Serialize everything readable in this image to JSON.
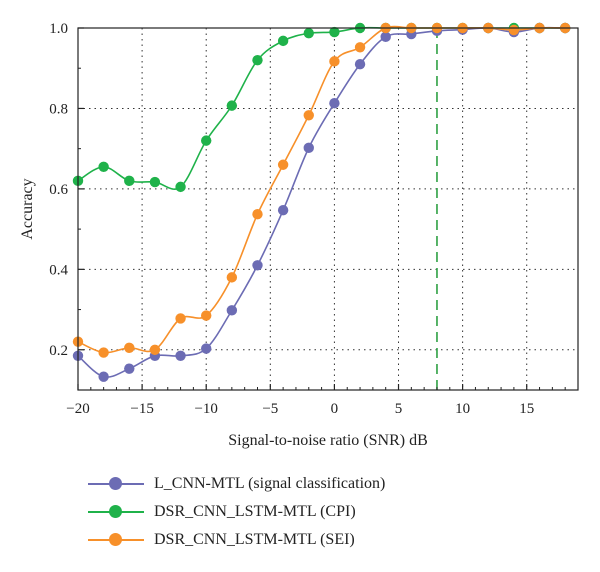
{
  "chart_data": {
    "type": "line",
    "xlabel": "Signal-to-noise ratio (SNR) dB",
    "ylabel": "Accuracy",
    "xlim": [
      -20,
      19
    ],
    "ylim": [
      0.1,
      1.0
    ],
    "xticks": [
      -20,
      -15,
      -10,
      -5,
      0,
      5,
      10,
      15
    ],
    "xticklabels": [
      "−20",
      "−15",
      "−10",
      "−5",
      "0",
      "5",
      "10",
      "15"
    ],
    "yticks": [
      0.2,
      0.4,
      0.6,
      0.8,
      1.0
    ],
    "yticklabels": [
      "0.2",
      "0.4",
      "0.6",
      "0.8",
      "1.0"
    ],
    "grid": true,
    "vline": {
      "x": 8,
      "color": "#2ea043"
    },
    "legend_position": "bottom",
    "series": [
      {
        "name": "L_CNN-MTL (signal classification)",
        "color": "#6c6cb4",
        "x": [
          -20,
          -18,
          -16,
          -14,
          -12,
          -10,
          -8,
          -6,
          -4,
          -2,
          0,
          2,
          4,
          6,
          8,
          10,
          12,
          14,
          16,
          18
        ],
        "values": [
          0.185,
          0.133,
          0.153,
          0.185,
          0.185,
          0.203,
          0.298,
          0.41,
          0.547,
          0.702,
          0.813,
          0.91,
          0.978,
          0.985,
          0.993,
          0.996,
          1.0,
          0.99,
          1.0,
          1.0
        ]
      },
      {
        "name": "DSR_CNN_LSTM-MTL (CPI)",
        "color": "#1fb24a",
        "x": [
          -20,
          -18,
          -16,
          -14,
          -12,
          -10,
          -8,
          -6,
          -4,
          -2,
          0,
          2,
          4,
          6,
          8,
          10,
          12,
          14,
          16,
          18
        ],
        "values": [
          0.62,
          0.655,
          0.62,
          0.617,
          0.605,
          0.72,
          0.807,
          0.92,
          0.968,
          0.987,
          0.99,
          1.0,
          1.0,
          1.0,
          1.0,
          1.0,
          1.0,
          1.0,
          1.0,
          1.0
        ]
      },
      {
        "name": "DSR_CNN_LSTM-MTL (SEI)",
        "color": "#f7902a",
        "x": [
          -20,
          -18,
          -16,
          -14,
          -12,
          -10,
          -8,
          -6,
          -4,
          -2,
          0,
          2,
          4,
          6,
          8,
          10,
          12,
          14,
          16,
          18
        ],
        "values": [
          0.22,
          0.193,
          0.205,
          0.2,
          0.278,
          0.285,
          0.38,
          0.537,
          0.66,
          0.783,
          0.917,
          0.952,
          1.0,
          1.0,
          1.0,
          1.0,
          1.0,
          0.995,
          1.0,
          1.0
        ]
      }
    ]
  }
}
